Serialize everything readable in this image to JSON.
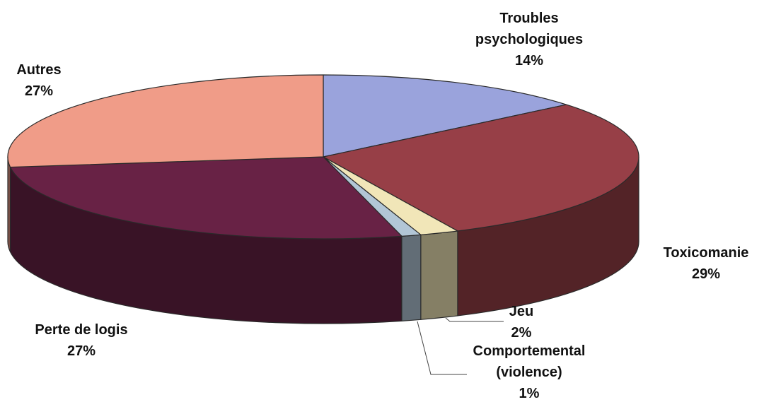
{
  "chart_data": {
    "type": "pie",
    "title": "",
    "style": "3d",
    "slices": [
      {
        "name": "Troubles psychologiques",
        "label_lines": [
          "Troubles",
          "psychologiques"
        ],
        "value": 14,
        "value_label": "14%",
        "color": "#9aa3dc"
      },
      {
        "name": "Toxicomanie",
        "label_lines": [
          "Toxicomanie"
        ],
        "value": 29,
        "value_label": "29%",
        "color": "#973f47"
      },
      {
        "name": "Jeu",
        "label_lines": [
          "Jeu"
        ],
        "value": 2,
        "value_label": "2%",
        "color": "#f1e6b8"
      },
      {
        "name": "Comportemental (violence)",
        "label_lines": [
          "Comportemental",
          "(violence)"
        ],
        "value": 1,
        "value_label": "1%",
        "color": "#b2c6d6"
      },
      {
        "name": "Perte de logis",
        "label_lines": [
          "Perte de logis"
        ],
        "value": 27,
        "value_label": "27%",
        "color": "#682245"
      },
      {
        "name": "Autres",
        "label_lines": [
          "Autres"
        ],
        "value": 27,
        "value_label": "27%",
        "color": "#f09c88"
      }
    ]
  }
}
